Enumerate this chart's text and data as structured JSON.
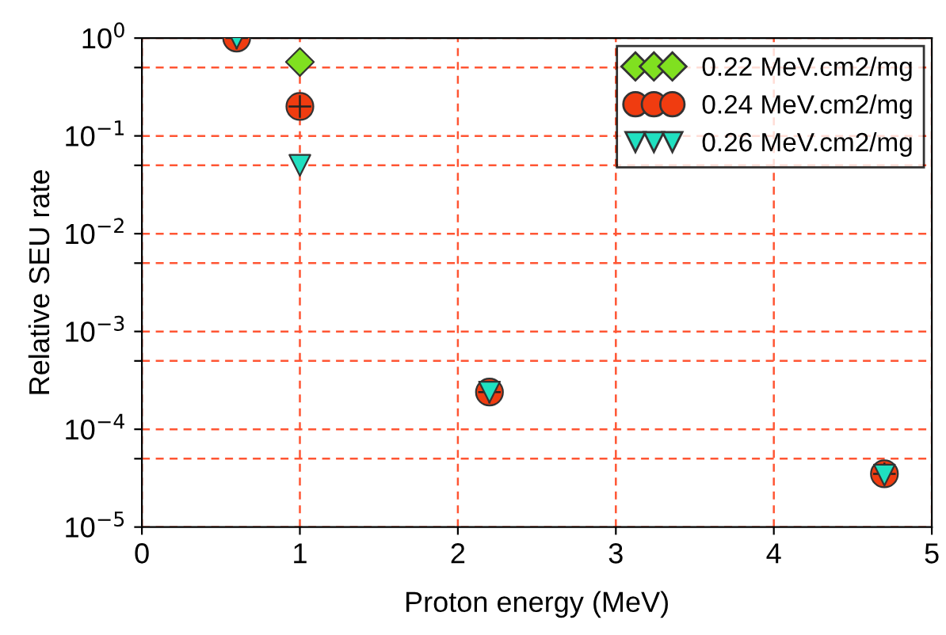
{
  "chart_data": {
    "type": "scatter",
    "xlabel": "Proton energy (MeV)",
    "ylabel": "Relative SEU rate",
    "log": "y",
    "grid": true,
    "legend": "top right",
    "line_style": "dashed",
    "x": [
      0.6,
      1,
      2.2,
      4.7
    ],
    "series": [
      {
        "name": "0.22 MeV.cm2/mg",
        "color": "#80e020",
        "marker": "diamond",
        "values": [
          null,
          0.57,
          null,
          null
        ]
      },
      {
        "name": "0.24 MeV.cm2/mg",
        "color": "#f03c10",
        "marker": "circle",
        "values": [
          1,
          0.2,
          0.00024,
          3.5e-05
        ]
      },
      {
        "name": "0.26 MeV.cm2/mg",
        "color": "#20e0c0",
        "marker": "triangle",
        "values": [
          1,
          0.05,
          0.00024,
          3.4e-05
        ]
      }
    ],
    "xlim": [
      0,
      5
    ],
    "xticks": [
      0,
      1,
      2,
      3,
      4,
      5
    ],
    "ylim": [
      1e-05,
      1
    ],
    "yticks": [
      {
        "value": 1e-05,
        "label": "10$^{−5}$"
      },
      {
        "value": 5e-05,
        "label": null
      },
      {
        "value": 0.0001,
        "label": "10$^{−4}$"
      },
      {
        "value": 0.0005,
        "label": null
      },
      {
        "value": 0.001,
        "label": "10$^{−3}$"
      },
      {
        "value": 0.005,
        "label": null
      },
      {
        "value": 0.01,
        "label": "10$^{−2}$"
      },
      {
        "value": 0.05,
        "label": null
      },
      {
        "value": 0.1,
        "label": "10$^{−1}$"
      },
      {
        "value": 0.5,
        "label": null
      },
      {
        "value": 1,
        "label": "10$^{0}$"
      }
    ]
  }
}
